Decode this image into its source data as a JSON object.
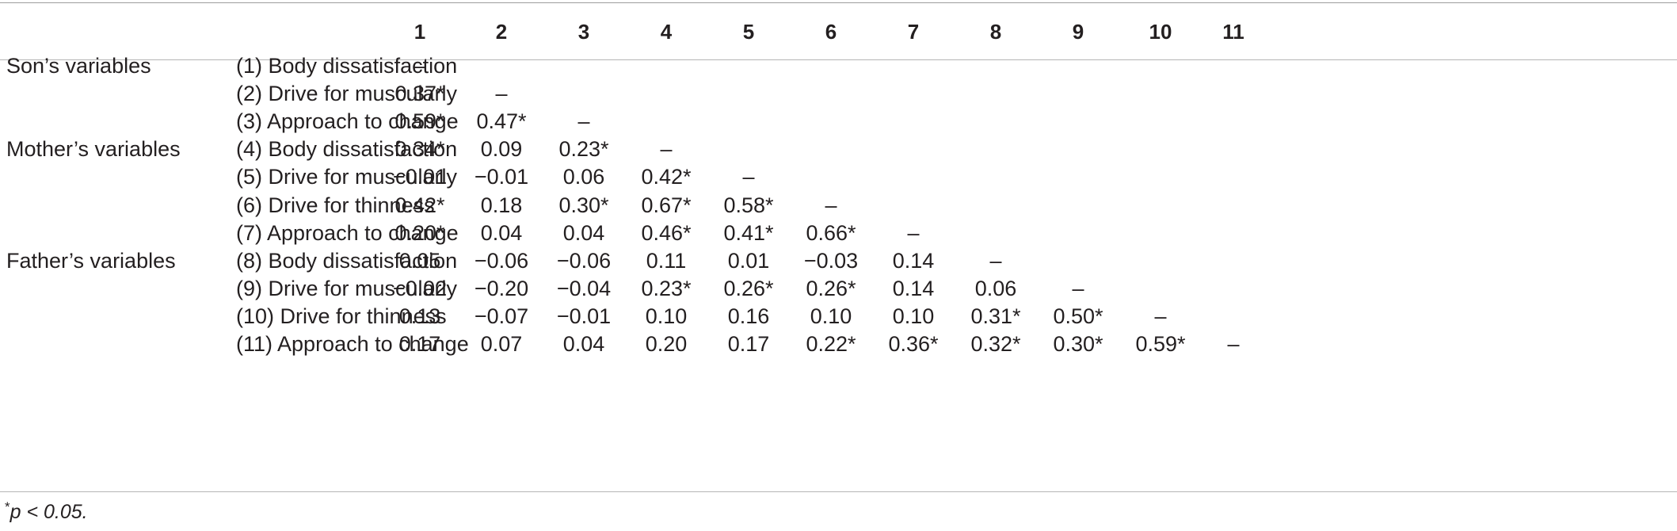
{
  "table": {
    "columns": [
      "1",
      "2",
      "3",
      "4",
      "5",
      "6",
      "7",
      "8",
      "9",
      "10",
      "11"
    ],
    "rows": [
      {
        "group": "Son’s variables",
        "label": "(1) Body dissatisfaction",
        "values": [
          "–",
          "",
          "",
          "",
          "",
          "",
          "",
          "",
          "",
          "",
          ""
        ]
      },
      {
        "group": "",
        "label": "(2) Drive for muscularly",
        "values": [
          "0.37*",
          "–",
          "",
          "",
          "",
          "",
          "",
          "",
          "",
          "",
          ""
        ]
      },
      {
        "group": "",
        "label": "(3) Approach to change",
        "values": [
          "0.59*",
          "0.47*",
          "–",
          "",
          "",
          "",
          "",
          "",
          "",
          "",
          ""
        ]
      },
      {
        "group": "Mother’s variables",
        "label": "(4) Body dissatisfaction",
        "values": [
          "0.34*",
          "0.09",
          "0.23*",
          "–",
          "",
          "",
          "",
          "",
          "",
          "",
          ""
        ]
      },
      {
        "group": "",
        "label": "(5) Drive for muscularly",
        "values": [
          "−0.01",
          "−0.01",
          "0.06",
          "0.42*",
          "–",
          "",
          "",
          "",
          "",
          "",
          ""
        ]
      },
      {
        "group": "",
        "label": "(6) Drive for thinness",
        "values": [
          "0.42*",
          "0.18",
          "0.30*",
          "0.67*",
          "0.58*",
          "–",
          "",
          "",
          "",
          "",
          ""
        ]
      },
      {
        "group": "",
        "label": "(7) Approach to change",
        "values": [
          "0.20*",
          "0.04",
          "0.04",
          "0.46*",
          "0.41*",
          "0.66*",
          "–",
          "",
          "",
          "",
          ""
        ]
      },
      {
        "group": "Father’s variables",
        "label": "(8) Body dissatisfaction",
        "values": [
          "0.05",
          "−0.06",
          "−0.06",
          "0.11",
          "0.01",
          "−0.03",
          "0.14",
          "–",
          "",
          "",
          ""
        ]
      },
      {
        "group": "",
        "label": "(9) Drive for muscularly",
        "values": [
          "−0.02",
          "−0.20",
          "−0.04",
          "0.23*",
          "0.26*",
          "0.26*",
          "0.14",
          "0.06",
          "–",
          "",
          ""
        ]
      },
      {
        "group": "",
        "label": "(10) Drive for thinness",
        "values": [
          "0.13",
          "−0.07",
          "−0.01",
          "0.10",
          "0.16",
          "0.10",
          "0.10",
          "0.31*",
          "0.50*",
          "–",
          ""
        ]
      },
      {
        "group": "",
        "label": "(11) Approach to change",
        "values": [
          "0.17",
          "0.07",
          "0.04",
          "0.20",
          "0.17",
          "0.22*",
          "0.36*",
          "0.32*",
          "0.30*",
          "0.59*",
          "–"
        ]
      }
    ]
  },
  "footnote": {
    "marker": "*",
    "text": "p < 0.05."
  }
}
